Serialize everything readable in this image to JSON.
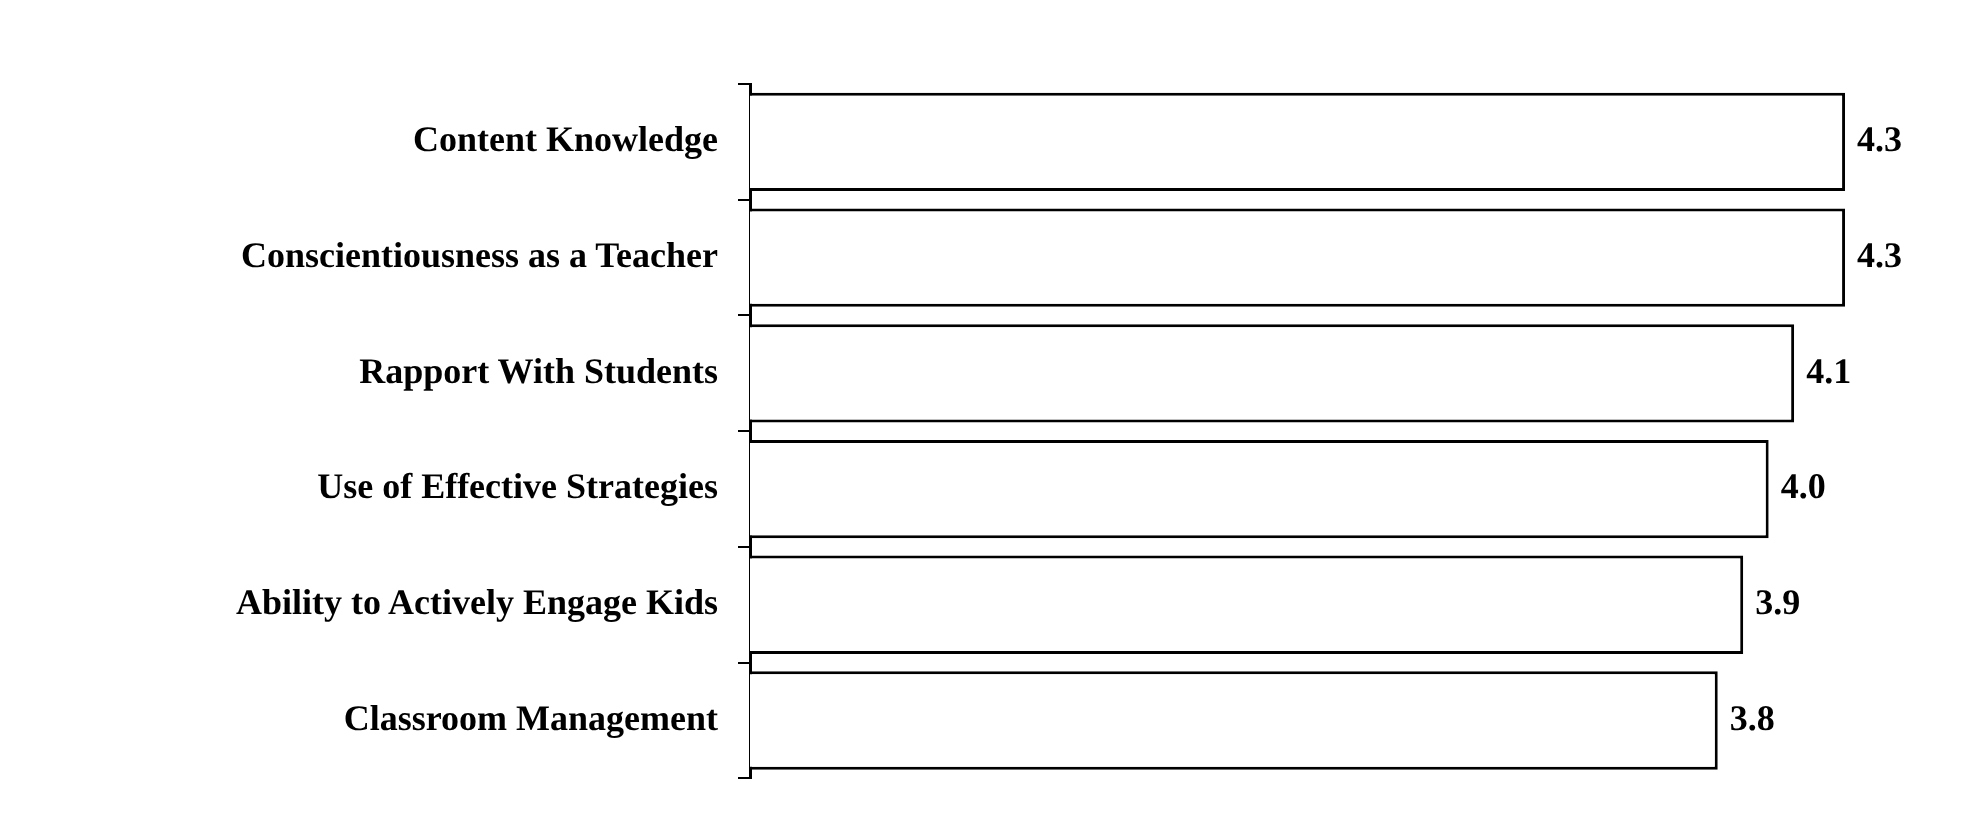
{
  "chart_data": {
    "type": "bar",
    "orientation": "horizontal",
    "categories": [
      "Content Knowledge",
      "Conscientiousness as a Teacher",
      "Rapport With Students",
      "Use of Effective Strategies",
      "Ability to Actively Engage Kids",
      "Classroom Management"
    ],
    "values": [
      4.3,
      4.3,
      4.1,
      4.0,
      3.9,
      3.8
    ],
    "value_labels": [
      "4.3",
      "4.3",
      "4.1",
      "4.0",
      "3.9",
      "3.8"
    ],
    "color": "#ffffff",
    "tick_labels": "y"
  }
}
